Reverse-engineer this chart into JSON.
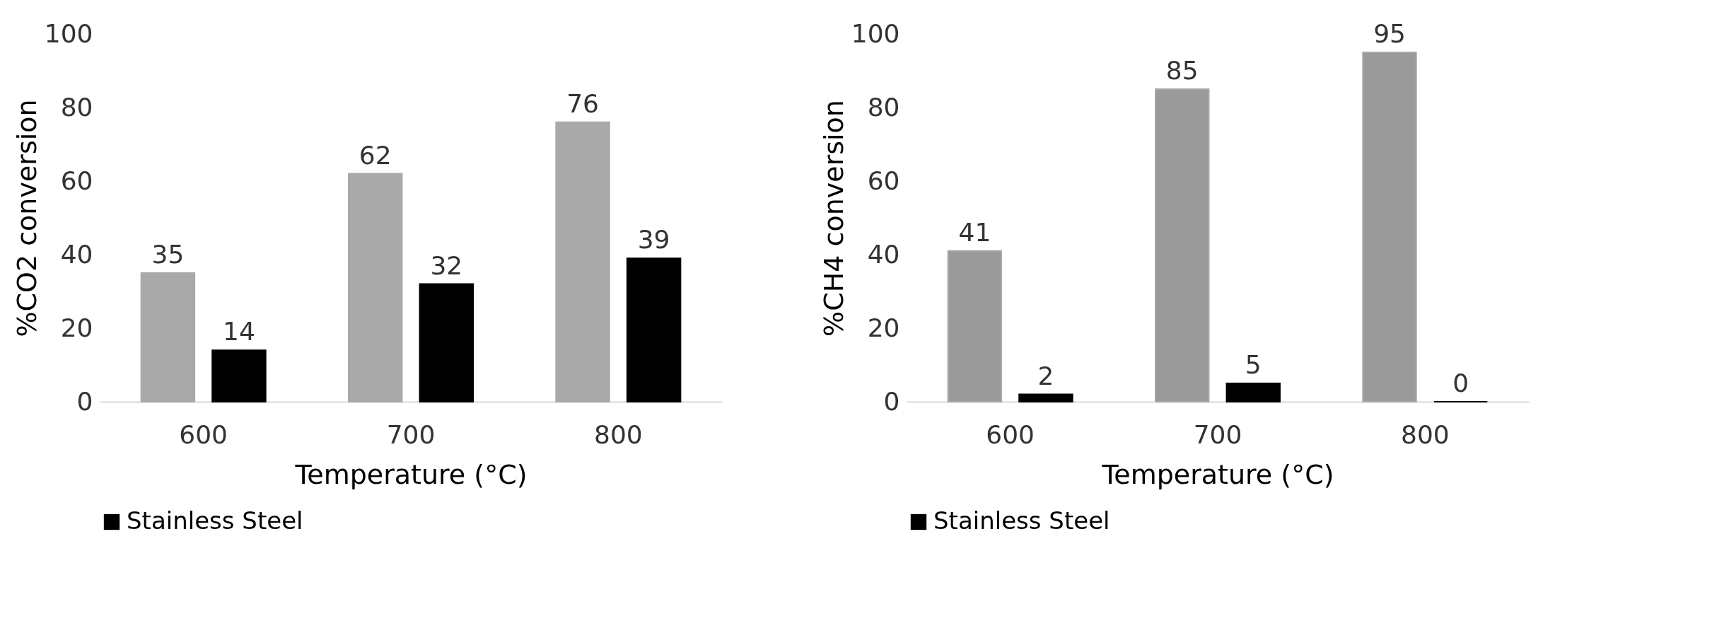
{
  "chart_data": [
    {
      "type": "bar",
      "categories": [
        "600",
        "700",
        "800"
      ],
      "xlabel": "Temperature (°C)",
      "ylabel": "%CO2 conversion",
      "ylim": [
        0,
        100
      ],
      "yticks": [
        0,
        20,
        40,
        60,
        80,
        100
      ],
      "grid": false,
      "legend": "bottom",
      "data_labels": true,
      "series": [
        {
          "color": "#a9a9a9",
          "values": [
            35,
            62,
            76
          ]
        },
        {
          "name": "Stainless Steel",
          "color": "#000000",
          "values": [
            14,
            32,
            39
          ]
        }
      ]
    },
    {
      "type": "bar",
      "categories": [
        "600",
        "700",
        "800"
      ],
      "xlabel": "Temperature (°C)",
      "ylabel": "%CH4 conversion",
      "ylim": [
        0,
        100
      ],
      "yticks": [
        0,
        20,
        40,
        60,
        80,
        100
      ],
      "grid": false,
      "legend": "bottom",
      "data_labels": true,
      "series": [
        {
          "color": "#9a9a9a",
          "values": [
            41,
            85,
            95
          ]
        },
        {
          "name": "Stainless Steel",
          "color": "#000000",
          "values": [
            2,
            5,
            0
          ]
        }
      ]
    }
  ]
}
